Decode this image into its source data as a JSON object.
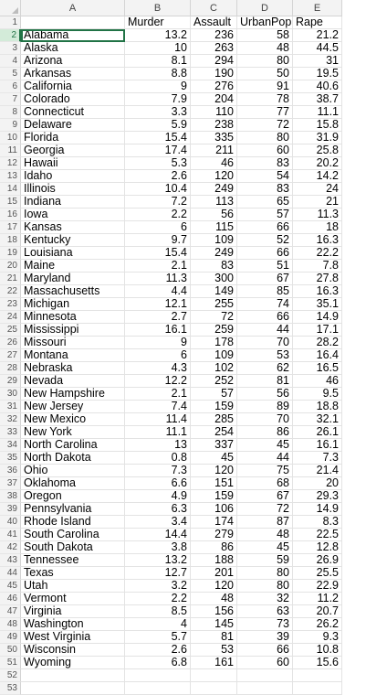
{
  "columns": [
    "A",
    "B",
    "C",
    "D",
    "E"
  ],
  "header": [
    "",
    "Murder",
    "Assault",
    "UrbanPop",
    "Rape"
  ],
  "active_row": 2,
  "rows": [
    [
      "Alabama",
      "13.2",
      "236",
      "58",
      "21.2"
    ],
    [
      "Alaska",
      "10",
      "263",
      "48",
      "44.5"
    ],
    [
      "Arizona",
      "8.1",
      "294",
      "80",
      "31"
    ],
    [
      "Arkansas",
      "8.8",
      "190",
      "50",
      "19.5"
    ],
    [
      "California",
      "9",
      "276",
      "91",
      "40.6"
    ],
    [
      "Colorado",
      "7.9",
      "204",
      "78",
      "38.7"
    ],
    [
      "Connecticut",
      "3.3",
      "110",
      "77",
      "11.1"
    ],
    [
      "Delaware",
      "5.9",
      "238",
      "72",
      "15.8"
    ],
    [
      "Florida",
      "15.4",
      "335",
      "80",
      "31.9"
    ],
    [
      "Georgia",
      "17.4",
      "211",
      "60",
      "25.8"
    ],
    [
      "Hawaii",
      "5.3",
      "46",
      "83",
      "20.2"
    ],
    [
      "Idaho",
      "2.6",
      "120",
      "54",
      "14.2"
    ],
    [
      "Illinois",
      "10.4",
      "249",
      "83",
      "24"
    ],
    [
      "Indiana",
      "7.2",
      "113",
      "65",
      "21"
    ],
    [
      "Iowa",
      "2.2",
      "56",
      "57",
      "11.3"
    ],
    [
      "Kansas",
      "6",
      "115",
      "66",
      "18"
    ],
    [
      "Kentucky",
      "9.7",
      "109",
      "52",
      "16.3"
    ],
    [
      "Louisiana",
      "15.4",
      "249",
      "66",
      "22.2"
    ],
    [
      "Maine",
      "2.1",
      "83",
      "51",
      "7.8"
    ],
    [
      "Maryland",
      "11.3",
      "300",
      "67",
      "27.8"
    ],
    [
      "Massachusetts",
      "4.4",
      "149",
      "85",
      "16.3"
    ],
    [
      "Michigan",
      "12.1",
      "255",
      "74",
      "35.1"
    ],
    [
      "Minnesota",
      "2.7",
      "72",
      "66",
      "14.9"
    ],
    [
      "Mississippi",
      "16.1",
      "259",
      "44",
      "17.1"
    ],
    [
      "Missouri",
      "9",
      "178",
      "70",
      "28.2"
    ],
    [
      "Montana",
      "6",
      "109",
      "53",
      "16.4"
    ],
    [
      "Nebraska",
      "4.3",
      "102",
      "62",
      "16.5"
    ],
    [
      "Nevada",
      "12.2",
      "252",
      "81",
      "46"
    ],
    [
      "New Hampshire",
      "2.1",
      "57",
      "56",
      "9.5"
    ],
    [
      "New Jersey",
      "7.4",
      "159",
      "89",
      "18.8"
    ],
    [
      "New Mexico",
      "11.4",
      "285",
      "70",
      "32.1"
    ],
    [
      "New York",
      "11.1",
      "254",
      "86",
      "26.1"
    ],
    [
      "North Carolina",
      "13",
      "337",
      "45",
      "16.1"
    ],
    [
      "North Dakota",
      "0.8",
      "45",
      "44",
      "7.3"
    ],
    [
      "Ohio",
      "7.3",
      "120",
      "75",
      "21.4"
    ],
    [
      "Oklahoma",
      "6.6",
      "151",
      "68",
      "20"
    ],
    [
      "Oregon",
      "4.9",
      "159",
      "67",
      "29.3"
    ],
    [
      "Pennsylvania",
      "6.3",
      "106",
      "72",
      "14.9"
    ],
    [
      "Rhode Island",
      "3.4",
      "174",
      "87",
      "8.3"
    ],
    [
      "South Carolina",
      "14.4",
      "279",
      "48",
      "22.5"
    ],
    [
      "South Dakota",
      "3.8",
      "86",
      "45",
      "12.8"
    ],
    [
      "Tennessee",
      "13.2",
      "188",
      "59",
      "26.9"
    ],
    [
      "Texas",
      "12.7",
      "201",
      "80",
      "25.5"
    ],
    [
      "Utah",
      "3.2",
      "120",
      "80",
      "22.9"
    ],
    [
      "Vermont",
      "2.2",
      "48",
      "32",
      "11.2"
    ],
    [
      "Virginia",
      "8.5",
      "156",
      "63",
      "20.7"
    ],
    [
      "Washington",
      "4",
      "145",
      "73",
      "26.2"
    ],
    [
      "West Virginia",
      "5.7",
      "81",
      "39",
      "9.3"
    ],
    [
      "Wisconsin",
      "2.6",
      "53",
      "66",
      "10.8"
    ],
    [
      "Wyoming",
      "6.8",
      "161",
      "60",
      "15.6"
    ]
  ],
  "empty_rows": 2,
  "colors": {
    "grid": "#e3e3e3",
    "header_bg": "#f3f3f3",
    "active": "#217346"
  }
}
